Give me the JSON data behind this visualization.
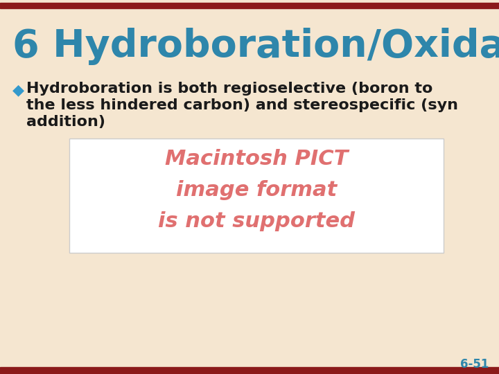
{
  "background_color": "#f5e6d0",
  "top_bar_color": "#8b1a1a",
  "bottom_bar_color": "#8b1a1a",
  "title_number": "6",
  "title_number_color": "#2e86ab",
  "title_text": "Hydroboration/Oxidation",
  "title_color": "#2e86ab",
  "title_fontsize": 40,
  "bullet_symbol": "◆",
  "bullet_color": "#3399cc",
  "bullet_text_line1": "Hydroboration is both regioselective (boron to",
  "bullet_text_line2": "the less hindered carbon) and stereospecific (syn",
  "bullet_text_line3": "addition)",
  "bullet_fontsize": 16,
  "bullet_text_color": "#1a1a1a",
  "box_color": "#ffffff",
  "box_border_color": "#cccccc",
  "pict_text_line1": "Macintosh PICT",
  "pict_text_line2": "image format",
  "pict_text_line3": "is not supported",
  "pict_text_color": "#e07070",
  "pict_fontsize": 22,
  "slide_number": "6-51",
  "slide_number_color": "#2e86ab",
  "slide_number_fontsize": 12
}
